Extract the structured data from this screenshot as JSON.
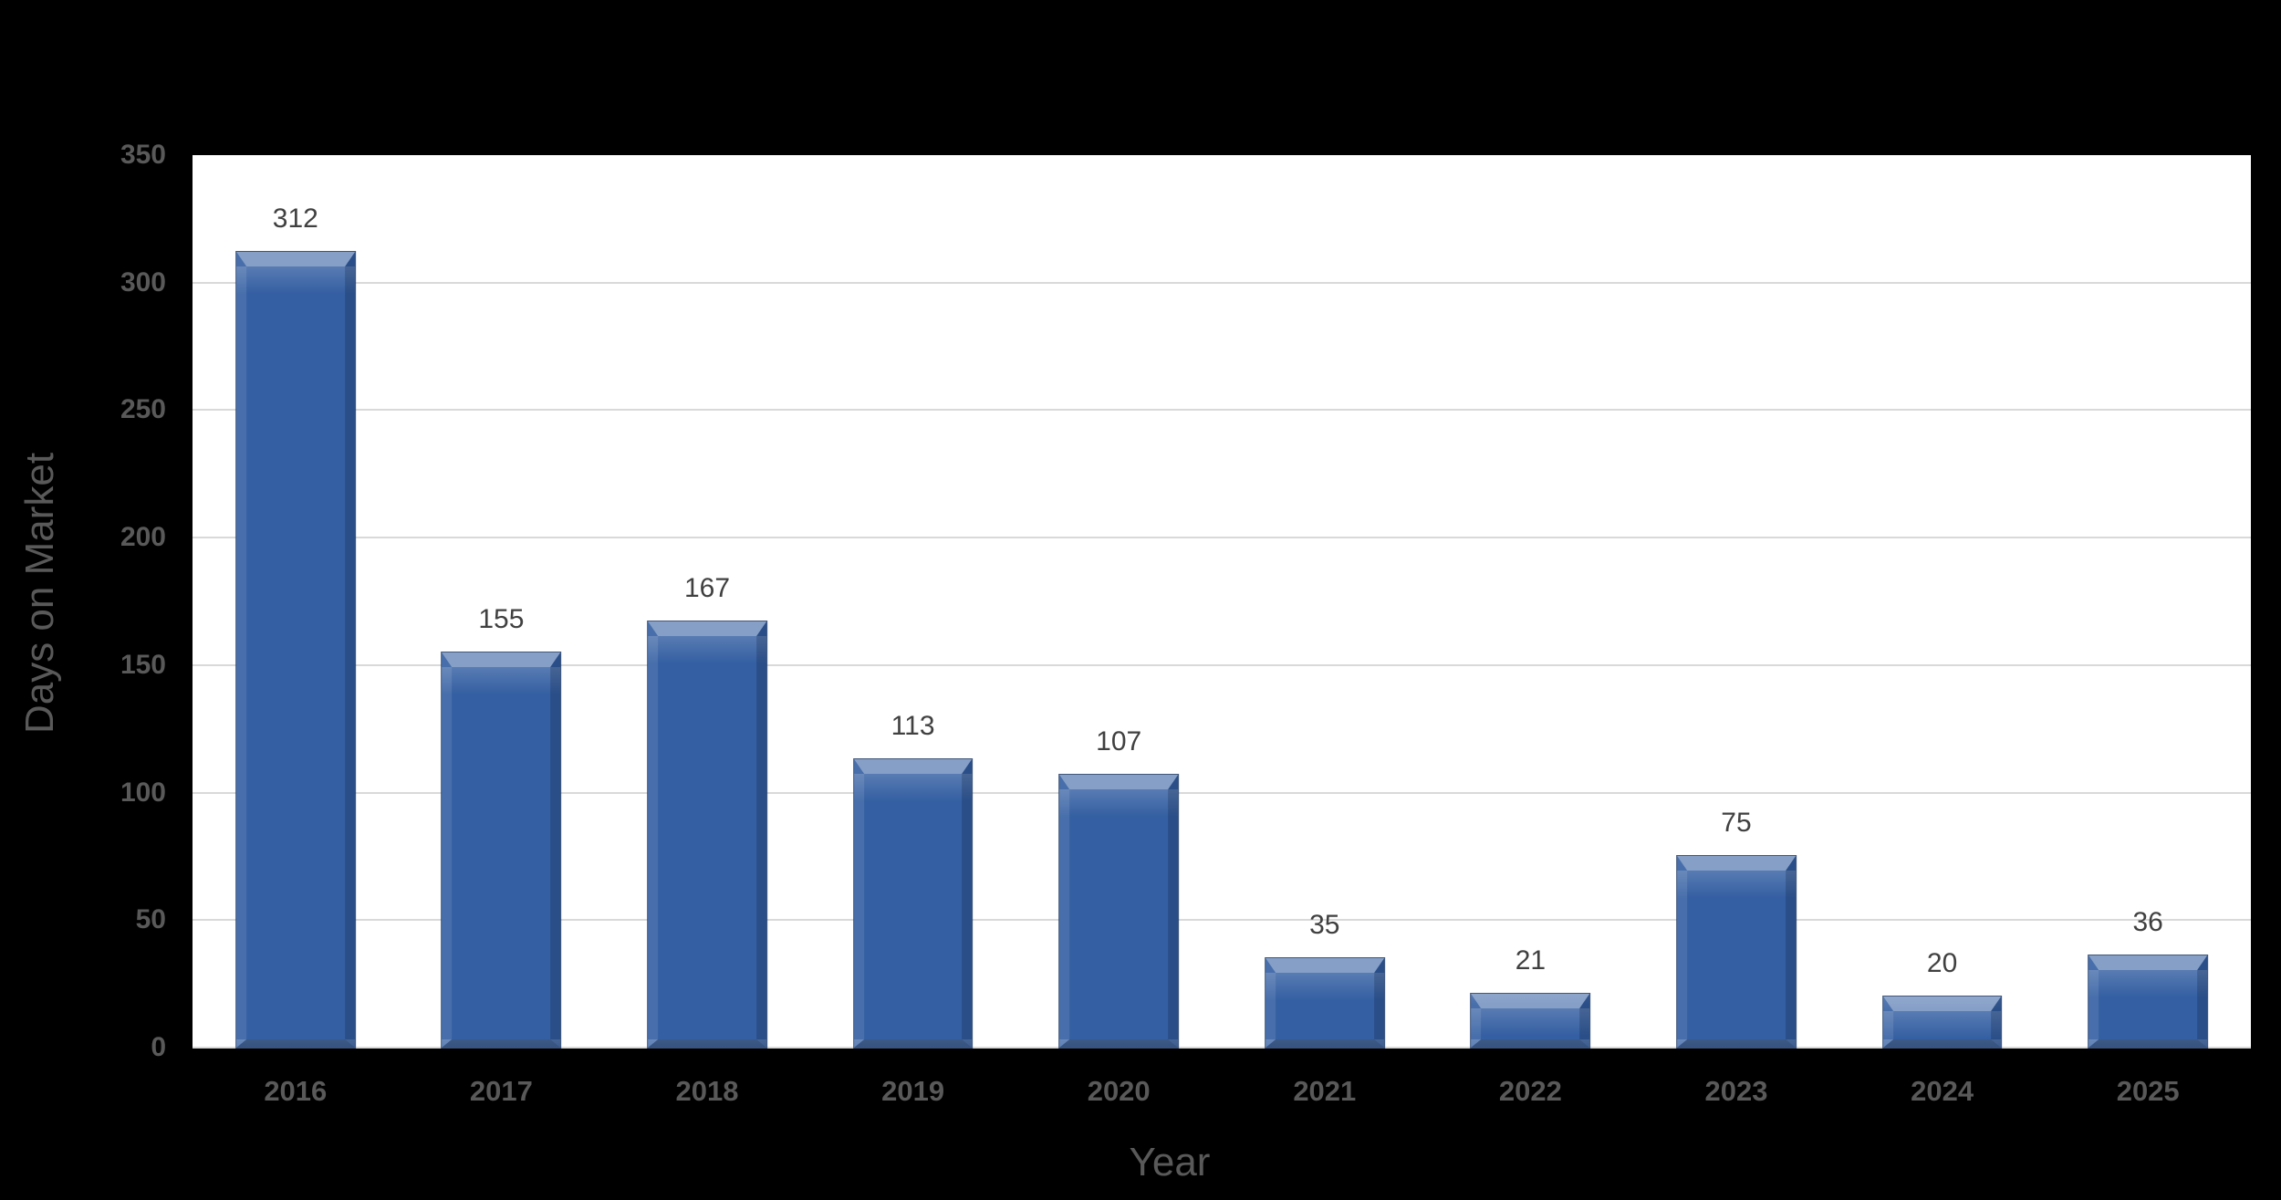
{
  "page": {
    "background": "#000000"
  },
  "chart_data": {
    "type": "bar",
    "title": "",
    "xlabel": "Year",
    "ylabel": "Days on Market",
    "categories": [
      "2016",
      "2017",
      "2018",
      "2019",
      "2020",
      "2021",
      "2022",
      "2023",
      "2024",
      "2025"
    ],
    "values": [
      312,
      155,
      167,
      113,
      107,
      35,
      21,
      75,
      20,
      36
    ],
    "ylim": [
      0,
      350
    ],
    "yticks": [
      0,
      50,
      100,
      150,
      200,
      250,
      300,
      350
    ],
    "grid": true,
    "legend": "none",
    "data_labels_shown": true,
    "colors": {
      "bar": "#345FA2",
      "bar_bevel_light": "#8FAEDE",
      "bar_bevel_dark": "#1F3C66",
      "plot_background": "#FFFFFF",
      "figure_background": "#000000",
      "gridline": "#D9D9D9",
      "axis_text": "#595959",
      "data_label_text": "#404040"
    }
  }
}
